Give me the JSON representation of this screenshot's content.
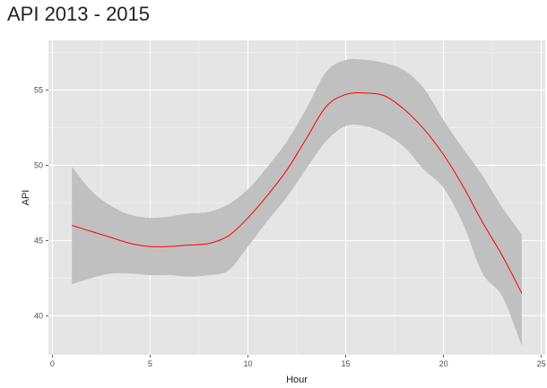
{
  "chart_data": {
    "type": "line",
    "title": "API 2013 - 2015",
    "xlabel": "Hour",
    "ylabel": "API",
    "xlim": [
      -0.2,
      25.2
    ],
    "ylim": [
      37.4,
      58.3
    ],
    "xticks": [
      0,
      5,
      10,
      15,
      20,
      25
    ],
    "yticks": [
      40,
      45,
      50,
      55
    ],
    "xminor": [
      2.5,
      7.5,
      12.5,
      17.5,
      22.5
    ],
    "yminor": [
      42.5,
      47.5,
      52.5,
      57.5
    ],
    "grid": true,
    "series": [
      {
        "type": "smooth_line",
        "color": "#ff0000",
        "x": [
          1,
          2,
          3,
          4,
          5,
          6,
          7,
          8,
          9,
          10,
          11,
          12,
          13,
          14,
          15,
          16,
          17,
          18,
          19,
          20,
          21,
          22,
          23,
          24
        ],
        "y": [
          46.0,
          45.6,
          45.2,
          44.8,
          44.6,
          44.6,
          44.7,
          44.8,
          45.3,
          46.5,
          48.0,
          49.7,
          51.8,
          53.9,
          54.7,
          54.8,
          54.6,
          53.7,
          52.4,
          50.7,
          48.6,
          46.2,
          44.0,
          41.5
        ],
        "lower": [
          42.1,
          42.5,
          42.8,
          42.8,
          42.7,
          42.7,
          42.6,
          42.7,
          43.0,
          44.6,
          46.3,
          47.9,
          49.8,
          51.6,
          52.6,
          52.6,
          52.1,
          51.2,
          49.7,
          48.5,
          46.1,
          42.8,
          41.3,
          38.0
        ],
        "upper": [
          49.9,
          48.3,
          47.3,
          46.7,
          46.5,
          46.6,
          46.8,
          46.9,
          47.4,
          48.4,
          49.9,
          51.6,
          53.8,
          56.2,
          57.0,
          57.0,
          56.8,
          56.3,
          55.1,
          53.0,
          51.1,
          49.3,
          47.2,
          45.4
        ],
        "band_color": "#c0c0c0"
      }
    ]
  }
}
